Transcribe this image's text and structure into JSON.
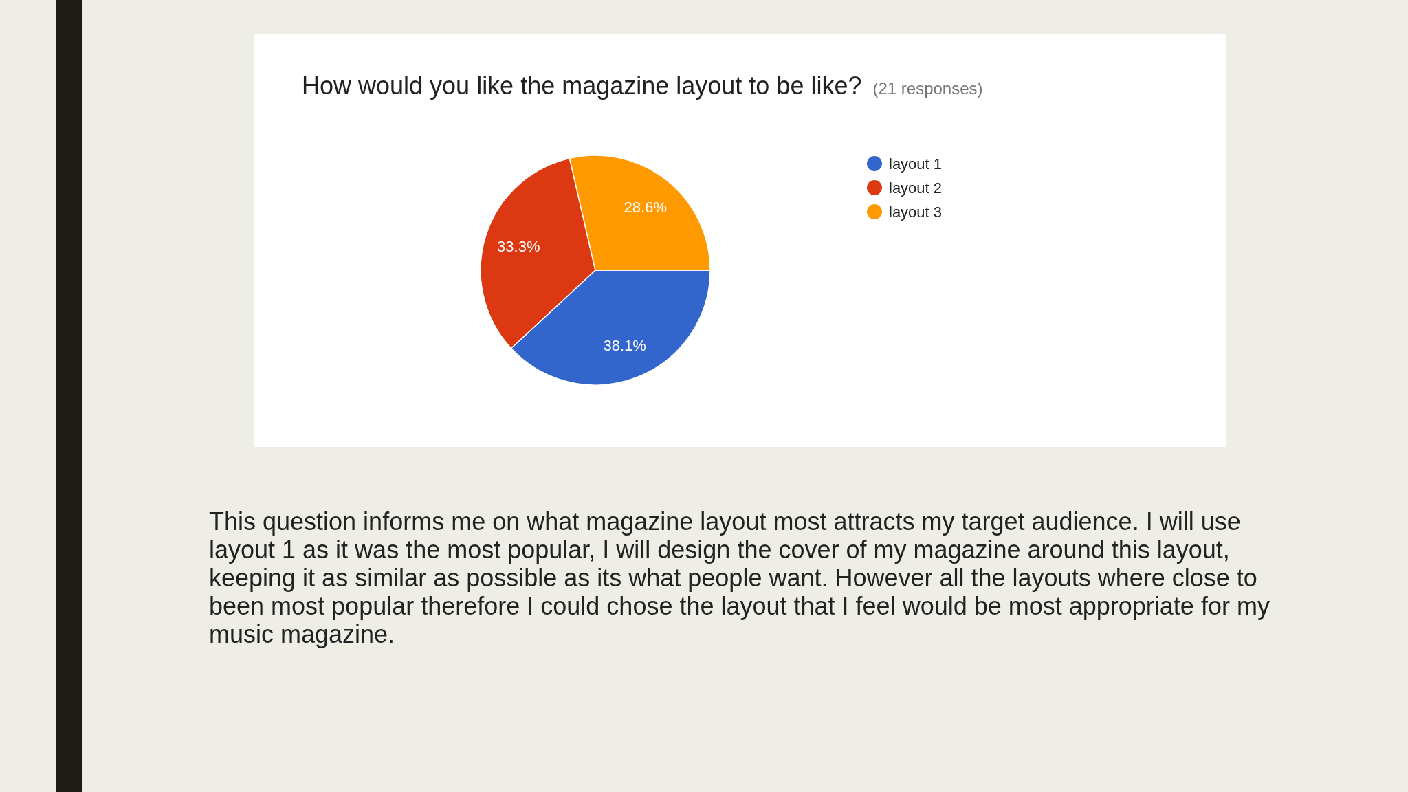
{
  "chart_data": {
    "type": "pie",
    "title": "How would you like the magazine layout to be like?",
    "subtitle": "(21 responses)",
    "categories": [
      "layout 1",
      "layout 2",
      "layout 3"
    ],
    "values": [
      38.1,
      33.3,
      28.6
    ],
    "colors": [
      "#3366cc",
      "#dc3912",
      "#ff9900"
    ],
    "value_labels": [
      "38.1%",
      "33.3%",
      "28.6%"
    ],
    "legend": "top right",
    "annotations": [
      "This question informs me on what magazine layout most attracts my target audience. I will use layout 1 as it was the most popular, I will design the cover of my magazine around this layout, keeping it as similar as possible as its what people want. However all the layouts where close to been most popular therefore I could chose the layout that I feel would be most appropriate for my music magazine."
    ]
  }
}
